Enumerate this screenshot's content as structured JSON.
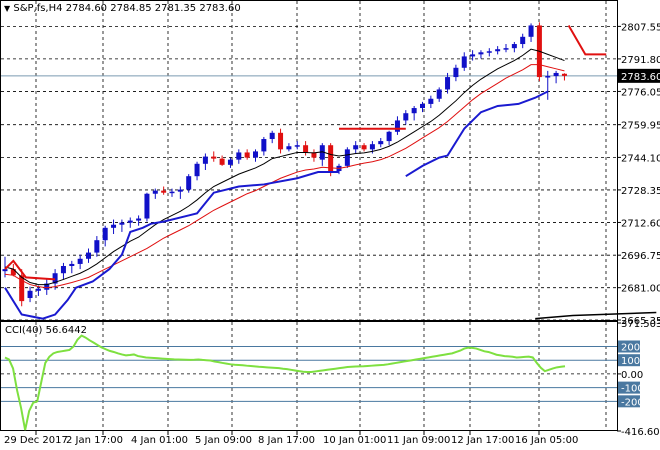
{
  "header": {
    "arrow_icon": "triangle-down-icon",
    "symbol": "S&P,fs,H4",
    "open": "2784.60",
    "high": "2784.85",
    "low": "2781.35",
    "close": "2783.60"
  },
  "cci": {
    "label": "CCI(40) 56.6442"
  },
  "colors": {
    "bull": "#1010c8",
    "bear": "#e01010",
    "ma_fast": "#000000",
    "ma_slow": "#e01010",
    "stop_line": "#1a1ad0",
    "cci_line": "#7ee040",
    "level_band": "#4a78a0"
  },
  "chart_data": [
    {
      "type": "candlestick",
      "title": "S&P,fs,H4",
      "ylim": [
        2665.35,
        2815.0
      ],
      "y_ticks": [
        "2807.55",
        "2791.80",
        "2776.05",
        "2759.95",
        "2744.10",
        "2728.35",
        "2712.60",
        "2696.75",
        "2681.00",
        "2665.35"
      ],
      "current_price": "2783.60",
      "x_ticks": [
        "29 Dec 2017",
        "2 Jan 17:00",
        "4 Jan 01:00",
        "5 Jan 09:00",
        "8 Jan 17:00",
        "10 Jan 01:00",
        "11 Jan 09:00",
        "12 Jan 17:00",
        "16 Jan 05:00"
      ],
      "candles": [
        [
          2689.0,
          2696.0,
          2686.0,
          2690.0
        ],
        [
          2690.0,
          2692.5,
          2686.5,
          2687.0
        ],
        [
          2687.0,
          2690.0,
          2672.0,
          2674.5
        ],
        [
          2676.0,
          2681.5,
          2674.0,
          2679.5
        ],
        [
          2679.5,
          2682.0,
          2677.0,
          2680.5
        ],
        [
          2680.0,
          2685.0,
          2677.5,
          2683.0
        ],
        [
          2683.0,
          2690.0,
          2680.0,
          2688.0
        ],
        [
          2688.0,
          2693.0,
          2685.0,
          2691.5
        ],
        [
          2691.5,
          2694.0,
          2688.0,
          2692.5
        ],
        [
          2692.5,
          2697.0,
          2690.0,
          2695.0
        ],
        [
          2695.0,
          2700.0,
          2693.0,
          2698.0
        ],
        [
          2698.0,
          2706.0,
          2696.0,
          2704.0
        ],
        [
          2704.0,
          2711.0,
          2701.0,
          2710.0
        ],
        [
          2710.0,
          2714.0,
          2707.0,
          2711.5
        ],
        [
          2711.5,
          2714.0,
          2708.0,
          2712.5
        ],
        [
          2712.5,
          2715.0,
          2710.0,
          2713.5
        ],
        [
          2713.5,
          2716.0,
          2711.0,
          2714.5
        ],
        [
          2714.5,
          2727.0,
          2713.0,
          2726.5
        ],
        [
          2726.5,
          2729.0,
          2724.0,
          2728.0
        ],
        [
          2728.0,
          2730.0,
          2726.0,
          2727.0
        ],
        [
          2727.0,
          2729.0,
          2725.0,
          2727.5
        ],
        [
          2727.5,
          2730.0,
          2724.0,
          2728.5
        ],
        [
          2728.5,
          2736.0,
          2727.0,
          2735.0
        ],
        [
          2735.0,
          2742.0,
          2733.0,
          2741.0
        ],
        [
          2741.0,
          2746.0,
          2738.0,
          2744.5
        ],
        [
          2744.5,
          2747.0,
          2742.0,
          2743.5
        ],
        [
          2743.5,
          2745.0,
          2740.0,
          2740.5
        ],
        [
          2740.5,
          2744.0,
          2739.0,
          2743.0
        ],
        [
          2743.0,
          2748.0,
          2741.0,
          2746.5
        ],
        [
          2746.5,
          2748.0,
          2743.0,
          2744.0
        ],
        [
          2744.0,
          2748.0,
          2742.0,
          2747.0
        ],
        [
          2747.0,
          2754.0,
          2745.0,
          2753.0
        ],
        [
          2753.0,
          2757.0,
          2751.0,
          2756.0
        ],
        [
          2756.0,
          2758.0,
          2746.0,
          2748.0
        ],
        [
          2748.0,
          2751.0,
          2747.0,
          2749.5
        ],
        [
          2749.5,
          2752.0,
          2748.0,
          2750.0
        ],
        [
          2750.0,
          2752.0,
          2745.0,
          2746.5
        ],
        [
          2746.5,
          2748.0,
          2742.0,
          2744.0
        ],
        [
          2743.0,
          2751.0,
          2740.0,
          2750.0
        ],
        [
          2750.0,
          2751.0,
          2735.0,
          2737.5
        ],
        [
          2737.5,
          2741.0,
          2736.0,
          2740.0
        ],
        [
          2740.0,
          2749.0,
          2739.0,
          2748.0
        ],
        [
          2748.0,
          2752.0,
          2746.0,
          2750.0
        ],
        [
          2750.0,
          2751.0,
          2747.0,
          2748.0
        ],
        [
          2748.0,
          2752.0,
          2746.0,
          2750.5
        ],
        [
          2750.5,
          2753.5,
          2749.0,
          2752.0
        ],
        [
          2752.0,
          2757.0,
          2750.0,
          2756.5
        ],
        [
          2756.5,
          2764.0,
          2755.0,
          2762.0
        ],
        [
          2762.0,
          2767.0,
          2760.0,
          2765.5
        ],
        [
          2765.5,
          2769.0,
          2762.0,
          2768.0
        ],
        [
          2768.0,
          2771.0,
          2766.0,
          2770.0
        ],
        [
          2770.0,
          2774.0,
          2768.0,
          2772.5
        ],
        [
          2772.5,
          2778.0,
          2771.0,
          2777.0
        ],
        [
          2777.0,
          2785.0,
          2775.0,
          2783.0
        ],
        [
          2783.0,
          2789.0,
          2781.0,
          2787.5
        ],
        [
          2787.5,
          2795.0,
          2786.0,
          2793.0
        ],
        [
          2793.0,
          2796.0,
          2791.0,
          2794.0
        ],
        [
          2794.0,
          2796.0,
          2792.0,
          2795.0
        ],
        [
          2795.0,
          2797.0,
          2793.0,
          2795.5
        ],
        [
          2795.5,
          2798.0,
          2794.0,
          2796.5
        ],
        [
          2796.5,
          2799.0,
          2795.0,
          2797.0
        ],
        [
          2797.0,
          2800.0,
          2795.0,
          2799.0
        ],
        [
          2799.0,
          2804.0,
          2797.0,
          2802.5
        ],
        [
          2802.5,
          2809.0,
          2800.0,
          2808.0
        ],
        [
          2808.0,
          2809.5,
          2781.0,
          2783.0
        ],
        [
          2783.0,
          2786.0,
          2772.0,
          2783.5
        ],
        [
          2783.5,
          2786.0,
          2780.0,
          2785.0
        ],
        [
          2784.6,
          2784.85,
          2781.35,
          2783.6
        ]
      ],
      "ma_fast": [
        2691.0,
        2690.0,
        2686.0,
        2683.5,
        2682.5,
        2682.5,
        2683.6,
        2685.0,
        2686.5,
        2688.0,
        2690.0,
        2692.5,
        2695.5,
        2698.5,
        2701.0,
        2703.5,
        2705.5,
        2708.5,
        2711.5,
        2714.0,
        2716.0,
        2718.0,
        2720.5,
        2723.5,
        2727.0,
        2730.0,
        2732.0,
        2734.0,
        2736.0,
        2737.5,
        2739.0,
        2741.0,
        2743.5,
        2744.5,
        2745.5,
        2746.5,
        2746.5,
        2746.3,
        2746.8,
        2745.5,
        2744.8,
        2745.3,
        2746.0,
        2746.3,
        2747.0,
        2748.0,
        2749.5,
        2751.5,
        2754.0,
        2756.5,
        2759.0,
        2761.5,
        2764.5,
        2768.0,
        2771.5,
        2775.5,
        2779.0,
        2782.0,
        2784.5,
        2787.0,
        2789.0,
        2791.0,
        2793.5,
        2796.5,
        2795.5,
        2794.0,
        2792.5,
        2791.0
      ],
      "ma_slow": [
        2687.5,
        2687.0,
        2684.5,
        2682.5,
        2681.5,
        2681.0,
        2681.5,
        2682.5,
        2683.5,
        2684.7,
        2686.0,
        2688.0,
        2690.0,
        2692.0,
        2694.0,
        2696.0,
        2698.0,
        2700.0,
        2702.5,
        2705.0,
        2707.0,
        2709.0,
        2711.0,
        2713.5,
        2716.0,
        2718.5,
        2720.5,
        2722.5,
        2724.5,
        2726.5,
        2728.0,
        2730.0,
        2732.0,
        2734.0,
        2735.5,
        2737.0,
        2738.0,
        2738.5,
        2739.3,
        2739.0,
        2738.8,
        2739.5,
        2740.5,
        2741.3,
        2742.0,
        2743.0,
        2744.5,
        2746.5,
        2748.5,
        2751.0,
        2753.5,
        2756.0,
        2758.5,
        2761.5,
        2765.0,
        2768.5,
        2772.0,
        2775.0,
        2777.5,
        2780.0,
        2782.5,
        2784.5,
        2786.5,
        2789.0,
        2789.0,
        2788.0,
        2787.0,
        2786.0
      ],
      "support_segments": [
        [
          [
            0,
            2681.0
          ],
          [
            4,
            2668.0
          ],
          [
            9,
            2666.0
          ],
          [
            12,
            2668.0
          ],
          [
            15,
            2675.0
          ],
          [
            17,
            2681.0
          ],
          [
            21,
            2684.0
          ],
          [
            25,
            2690.0
          ],
          [
            28,
            2697.0
          ],
          [
            30,
            2708.0
          ],
          [
            33,
            2710.0
          ],
          [
            35,
            2712.0
          ],
          [
            38,
            2713.0
          ],
          [
            44,
            2716.0
          ],
          [
            46,
            2717.0
          ],
          [
            48,
            2722.0
          ],
          [
            50,
            2727.0
          ],
          [
            56,
            2730.0
          ],
          [
            62,
            2731.0
          ],
          [
            70,
            2734.0
          ],
          [
            75,
            2737.0
          ],
          [
            80,
            2737.0
          ]
        ],
        [
          [
            96,
            2735.0
          ],
          [
            100,
            2740.0
          ],
          [
            104,
            2744.0
          ],
          [
            106,
            2745.0
          ],
          [
            110,
            2758.0
          ],
          [
            114,
            2766.0
          ],
          [
            118,
            2769.0
          ],
          [
            123,
            2770.0
          ],
          [
            127,
            2773.0
          ],
          [
            130,
            2776.0
          ]
        ]
      ],
      "resistance_segments": [
        [
          [
            0,
            2690.0
          ],
          [
            2,
            2694.0
          ],
          [
            5,
            2686.0
          ],
          [
            12,
            2685.0
          ]
        ],
        [
          [
            80,
            2758.0
          ],
          [
            96,
            2758.0
          ]
        ],
        [
          [
            135,
            2808.0
          ],
          [
            139,
            2794.0
          ],
          [
            144,
            2794.0
          ]
        ]
      ],
      "bottom_line": [
        [
          127,
          2666.0
        ],
        [
          136,
          2667.5
        ],
        [
          156,
          2669.0
        ]
      ]
    },
    {
      "type": "line",
      "title": "CCI(40) 56.6442",
      "ylim": [
        -416.6083,
        371.5039
      ],
      "y_ticks": [
        "371.5039",
        "200",
        "100",
        "0.00",
        "-100",
        "-200",
        "-416.6083"
      ],
      "levels": [
        200,
        100,
        -100,
        -200
      ],
      "values": [
        120,
        105,
        40,
        -120,
        -250,
        -410,
        -270,
        -210,
        -200,
        -60,
        80,
        125,
        150,
        160,
        165,
        170,
        175,
        200,
        250,
        280,
        265,
        245,
        228,
        210,
        193,
        180,
        168,
        160,
        150,
        142,
        135,
        138,
        142,
        130,
        125,
        120,
        118,
        116,
        114,
        112,
        110,
        108,
        106,
        105,
        104,
        103,
        102,
        103,
        105,
        102,
        100,
        98,
        90,
        86,
        80,
        75,
        70,
        67,
        65,
        63,
        60,
        58,
        55,
        52,
        50,
        48,
        46,
        44,
        42,
        38,
        35,
        30,
        25,
        20,
        16,
        14,
        14,
        18,
        22,
        26,
        30,
        34,
        38,
        42,
        46,
        50,
        52,
        54,
        55,
        56,
        58,
        60,
        62,
        64,
        66,
        70,
        75,
        80,
        85,
        90,
        95,
        100,
        105,
        110,
        115,
        120,
        125,
        130,
        135,
        140,
        145,
        150,
        160,
        170,
        185,
        192,
        190,
        185,
        175,
        165,
        160,
        150,
        140,
        135,
        130,
        128,
        125,
        120,
        122,
        124,
        126,
        120,
        80,
        45,
        20,
        30,
        40,
        48,
        52,
        56
      ]
    }
  ]
}
